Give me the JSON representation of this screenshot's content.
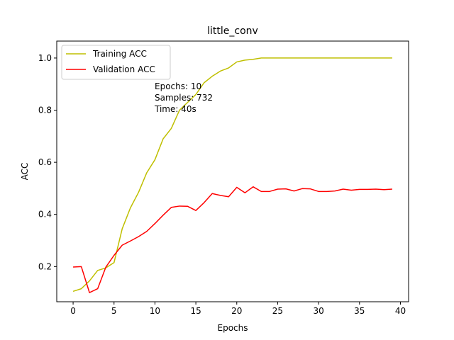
{
  "chart_data": {
    "type": "line",
    "title": "little_conv",
    "xlabel": "Epochs",
    "ylabel": "ACC",
    "xlim": [
      -2,
      41
    ],
    "ylim": [
      0.065,
      1.065
    ],
    "xticks": [
      0,
      5,
      10,
      15,
      20,
      25,
      30,
      35,
      40
    ],
    "yticks": [
      0.2,
      0.4,
      0.6,
      0.8,
      1.0
    ],
    "ytick_labels": [
      "0.2",
      "0.4",
      "0.6",
      "0.8",
      "1.0"
    ],
    "grid": false,
    "legend_position": "top-left",
    "x": [
      0,
      1,
      2,
      3,
      4,
      5,
      6,
      7,
      8,
      9,
      10,
      11,
      12,
      13,
      14,
      15,
      16,
      17,
      18,
      19,
      20,
      21,
      22,
      23,
      24,
      25,
      26,
      27,
      28,
      29,
      30,
      31,
      32,
      33,
      34,
      35,
      36,
      37,
      38,
      39
    ],
    "series": [
      {
        "name": "Training ACC",
        "color": "#bfbf00",
        "values": [
          0.105,
          0.115,
          0.145,
          0.185,
          0.195,
          0.215,
          0.345,
          0.425,
          0.485,
          0.56,
          0.61,
          0.69,
          0.73,
          0.8,
          0.83,
          0.86,
          0.905,
          0.93,
          0.95,
          0.962,
          0.985,
          0.992,
          0.995,
          1.0,
          1.0,
          1.0,
          1.0,
          1.0,
          1.0,
          1.0,
          1.0,
          1.0,
          1.0,
          1.0,
          1.0,
          1.0,
          1.0,
          1.0,
          1.0,
          1.0
        ]
      },
      {
        "name": "Validation ACC",
        "color": "#ff0000",
        "values": [
          0.198,
          0.2,
          0.1,
          0.115,
          0.198,
          0.243,
          0.282,
          0.298,
          0.315,
          0.335,
          0.365,
          0.397,
          0.427,
          0.432,
          0.431,
          0.415,
          0.445,
          0.48,
          0.473,
          0.468,
          0.504,
          0.483,
          0.506,
          0.488,
          0.488,
          0.497,
          0.498,
          0.49,
          0.499,
          0.498,
          0.488,
          0.488,
          0.49,
          0.497,
          0.493,
          0.496,
          0.496,
          0.497,
          0.495,
          0.497
        ]
      }
    ],
    "annotations": [
      "Epochs: 10",
      "Samples: 732",
      "Time: 40s"
    ]
  }
}
